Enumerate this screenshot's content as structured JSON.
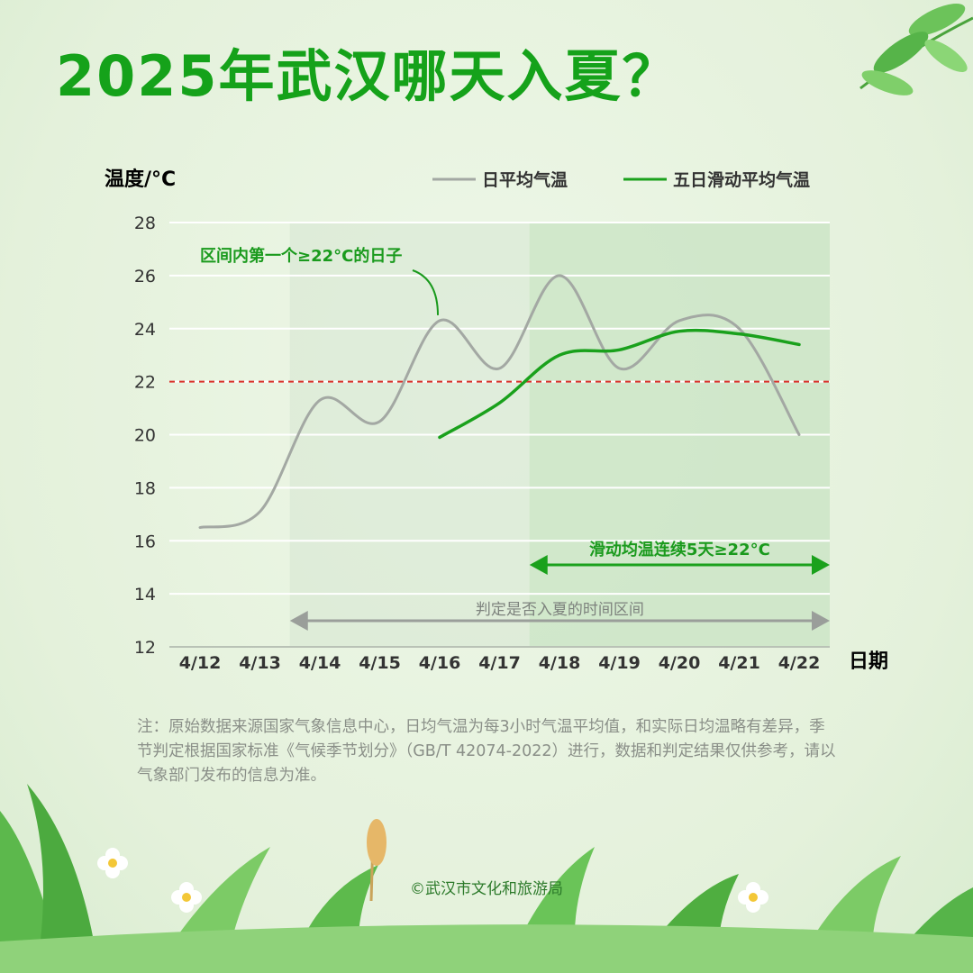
{
  "page": {
    "title": "2025年武汉哪天入夏？",
    "note": "注：原始数据来源国家气象信息中心，日均气温为每3小时气温平均值，和实际日均温略有差异，季节判定根据国家标准《气候季节划分》（GB/T 42074-2022）进行，数据和判定结果仅供参考，请以气象部门发布的信息为准。",
    "copyright": "©武汉市文化和旅游局"
  },
  "colors": {
    "title": "#15a21a",
    "daily_line": "#a3a8a3",
    "moving_line": "#1aa11c",
    "threshold_line": "#d9302a",
    "window_shade": "#d6e6d2",
    "summer_shade": "#cbe6c4",
    "grid": "#ffffff",
    "axis_text": "#333333",
    "accent_text": "#1a9a1d"
  },
  "chart_data": {
    "type": "line",
    "title": "2025年武汉哪天入夏？",
    "ylabel": "温度/°C",
    "xlabel": "日期",
    "categories": [
      "4/12",
      "4/13",
      "4/14",
      "4/15",
      "4/16",
      "4/17",
      "4/18",
      "4/19",
      "4/20",
      "4/21",
      "4/22"
    ],
    "ylim": [
      12,
      28
    ],
    "yticks": [
      12,
      14,
      16,
      18,
      20,
      22,
      24,
      26,
      28
    ],
    "grid": true,
    "legend_position": "top-right",
    "series": [
      {
        "name": "日平均气温",
        "color": "#a3a8a3",
        "values": [
          16.5,
          17.1,
          21.3,
          20.5,
          24.3,
          22.5,
          26.0,
          22.5,
          24.3,
          24.0,
          20.0
        ]
      },
      {
        "name": "五日滑动平均气温",
        "color": "#1aa11c",
        "values": [
          null,
          null,
          null,
          null,
          19.9,
          21.2,
          23.0,
          23.2,
          23.9,
          23.8,
          23.4
        ]
      }
    ],
    "threshold": {
      "value": 22,
      "style": "dashed"
    },
    "shaded_regions": [
      {
        "from": "4/14",
        "to": "4/22",
        "label": "判定是否入夏的时间区间"
      },
      {
        "from": "4/18",
        "to": "4/22",
        "label": "滑动均温连续5天≥22°C"
      }
    ],
    "annotations": [
      {
        "text": "区间内第一个≥22°C的日子",
        "target": "4/16"
      }
    ]
  }
}
